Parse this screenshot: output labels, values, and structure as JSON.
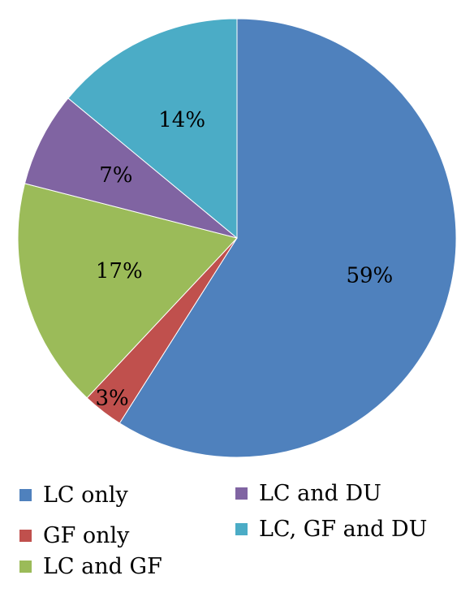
{
  "chart_data": {
    "type": "pie",
    "title": "",
    "slices": [
      {
        "name": "LC only",
        "value": 59,
        "label": "59%",
        "color": "#4F81BD"
      },
      {
        "name": "GF only",
        "value": 3,
        "label": "3%",
        "color": "#C0504D"
      },
      {
        "name": "LC and GF",
        "value": 17,
        "label": "17%",
        "color": "#9BBB59"
      },
      {
        "name": "LC and DU",
        "value": 7,
        "label": "7%",
        "color": "#8064A2"
      },
      {
        "name": "LC, GF and DU",
        "value": 14,
        "label": "14%",
        "color": "#4BACC6"
      }
    ],
    "start": "12 o'clock",
    "direction": "clockwise",
    "legend_position": "bottom"
  }
}
